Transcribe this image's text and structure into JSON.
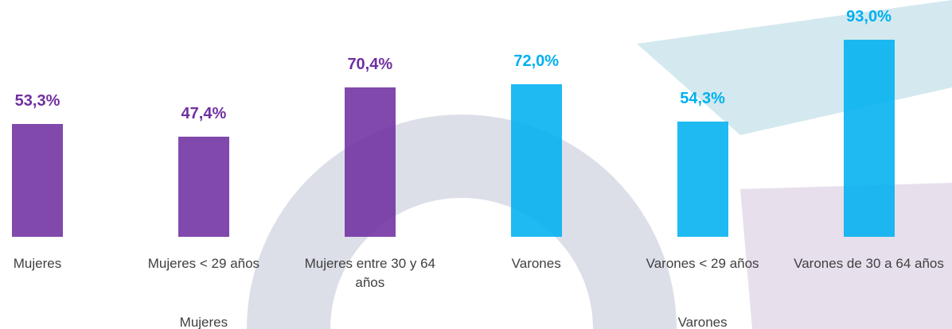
{
  "chart_data": {
    "type": "bar",
    "categories": [
      "Mujeres",
      "Mujeres < 29 años",
      "Mujeres entre 30 y 64 años",
      "Varones",
      "Varones < 29 años",
      "Varones de 30 a 64 años"
    ],
    "values": [
      53.3,
      47.4,
      70.4,
      72.0,
      54.3,
      93.0
    ],
    "value_labels": [
      "53,3%",
      "47,4%",
      "70,4%",
      "72,0%",
      "54,3%",
      "93,0%"
    ],
    "colors": [
      "#7030a0",
      "#7030a0",
      "#7030a0",
      "#00b0f0",
      "#00b0f0",
      "#00b0f0"
    ],
    "groups": [
      "Mujeres",
      "Varones"
    ]
  }
}
